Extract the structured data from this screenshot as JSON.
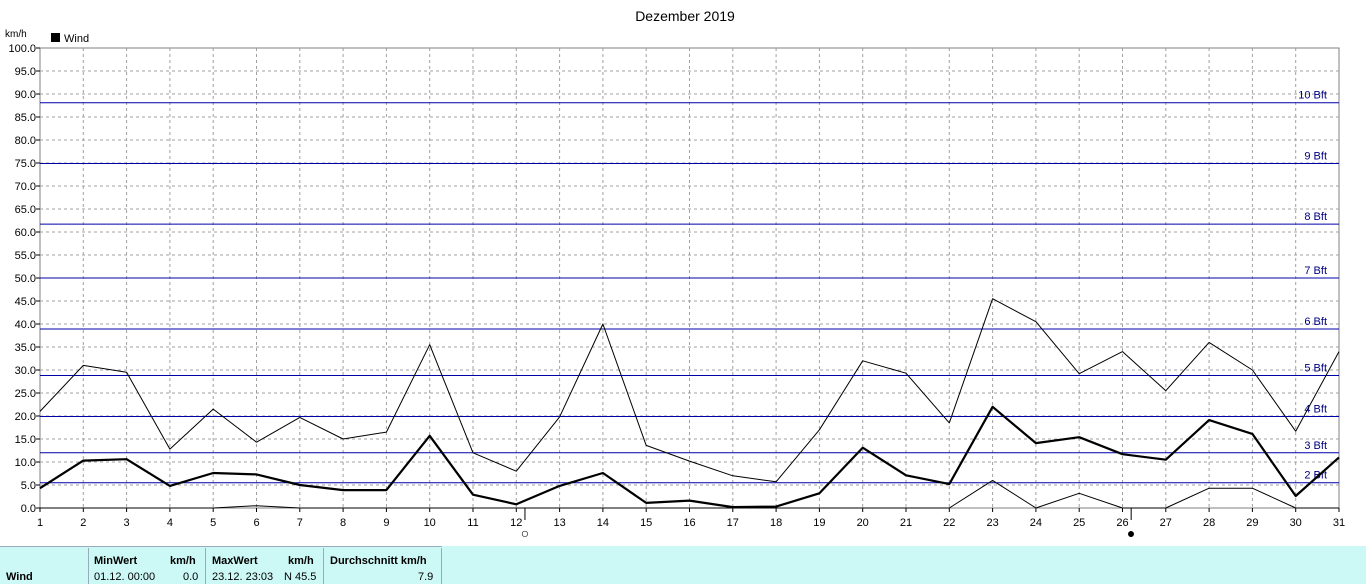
{
  "chart_data": {
    "type": "line",
    "title": "Dezember 2019",
    "ylabel": "km/h",
    "ylim": [
      0,
      100
    ],
    "yticks": [
      "0.0",
      "5.0",
      "10.0",
      "15.0",
      "20.0",
      "25.0",
      "30.0",
      "35.0",
      "40.0",
      "45.0",
      "50.0",
      "55.0",
      "60.0",
      "65.0",
      "70.0",
      "75.0",
      "80.0",
      "85.0",
      "90.0",
      "95.0",
      "100.0"
    ],
    "x": [
      1,
      2,
      3,
      4,
      5,
      6,
      7,
      8,
      9,
      10,
      11,
      12,
      13,
      14,
      15,
      16,
      17,
      18,
      19,
      20,
      21,
      22,
      23,
      24,
      25,
      26,
      27,
      28,
      29,
      30,
      31
    ],
    "legend": [
      "Wind"
    ],
    "legend_position": "top-left",
    "series": [
      {
        "name": "Wind",
        "role": "average",
        "values": [
          4.3,
          10.3,
          10.6,
          4.8,
          7.6,
          7.3,
          5.0,
          3.9,
          3.9,
          15.7,
          2.9,
          0.8,
          4.8,
          7.6,
          1.1,
          1.6,
          0.2,
          0.3,
          3.2,
          13.1,
          7.1,
          5.2,
          22.0,
          14.1,
          15.4,
          11.7,
          10.5,
          19.1,
          16.1,
          2.6,
          11.0
        ]
      },
      {
        "role": "maximum",
        "values": [
          21.0,
          31.0,
          29.5,
          12.8,
          21.5,
          14.3,
          19.7,
          15.0,
          16.5,
          35.5,
          12.0,
          8.0,
          19.8,
          40.0,
          13.6,
          10.2,
          7.0,
          5.7,
          17.0,
          32.0,
          29.3,
          18.5,
          45.5,
          40.5,
          29.2,
          34.0,
          25.5,
          36.0,
          30.0,
          16.7,
          34.0
        ]
      },
      {
        "role": "minimum",
        "values": [
          0,
          0,
          0,
          0,
          0,
          0.5,
          0,
          0,
          0,
          0,
          0,
          0,
          0,
          0,
          0,
          0,
          0,
          0,
          0,
          0,
          0,
          0,
          6.0,
          0,
          3.2,
          0,
          0,
          4.3,
          4.3,
          0,
          0
        ]
      }
    ],
    "reference_lines": [
      {
        "label": "2 Bft",
        "value": 5.5
      },
      {
        "label": "3 Bft",
        "value": 12.0
      },
      {
        "label": "4 Bft",
        "value": 19.9
      },
      {
        "label": "5 Bft",
        "value": 28.8
      },
      {
        "label": "6 Bft",
        "value": 38.9
      },
      {
        "label": "7 Bft",
        "value": 50.0
      },
      {
        "label": "8 Bft",
        "value": 61.7
      },
      {
        "label": "9 Bft",
        "value": 74.9
      },
      {
        "label": "10 Bft",
        "value": 88.1
      }
    ],
    "moon_phases": [
      {
        "day": 12,
        "symbol": "○"
      },
      {
        "day": 26,
        "symbol": "●"
      }
    ],
    "grid": true
  },
  "colors": {
    "reference_line": "#0000a8",
    "reference_label": "#000080",
    "grid": "#a0a0a0",
    "series": "#000000",
    "stats_background": "#ccf8f6"
  },
  "stats": {
    "row_label": "Wind",
    "min_header": "MinWert",
    "min_unit_header": "km/h",
    "max_header": "MaxWert",
    "max_unit_header": "km/h",
    "avg_header": "Durchschnitt km/h",
    "min_time": "01.12.  00:00",
    "min_value": "0.0",
    "max_time": "23.12.  23:03",
    "max_value": "N 45.5",
    "avg_value": "7.9"
  }
}
